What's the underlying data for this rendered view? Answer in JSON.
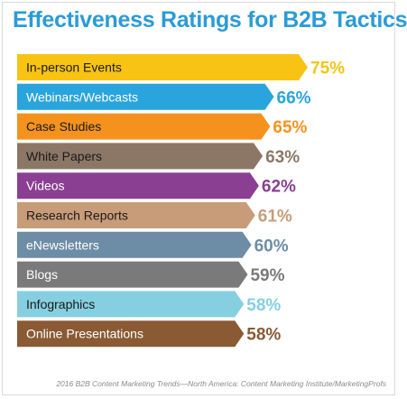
{
  "chart_data": {
    "type": "bar",
    "orientation": "horizontal",
    "title": "Effectiveness Ratings for B2B Tactics",
    "categories": [
      "In-person Events",
      "Webinars/Webcasts",
      "Case Studies",
      "White Papers",
      "Videos",
      "Research Reports",
      "eNewsletters",
      "Blogs",
      "Infographics",
      "Online Presentations"
    ],
    "values": [
      75,
      66,
      65,
      63,
      62,
      61,
      60,
      59,
      58,
      58
    ],
    "value_labels": [
      "75%",
      "66%",
      "65%",
      "63%",
      "62%",
      "61%",
      "60%",
      "59%",
      "58%",
      "58%"
    ],
    "colors": [
      "#f8c313",
      "#2aa4dc",
      "#f5921e",
      "#8c7766",
      "#8b3f92",
      "#c89c78",
      "#6d8ca5",
      "#7a7a7a",
      "#86cfe0",
      "#8a5a34"
    ],
    "label_text_colors": [
      "#1a1a1a",
      "#ffffff",
      "#1a1a1a",
      "#1a1a1a",
      "#ffffff",
      "#1a1a1a",
      "#ffffff",
      "#ffffff",
      "#1a1a1a",
      "#ffffff"
    ],
    "xlabel": "",
    "ylabel": "",
    "grid": false,
    "legend": "none",
    "source": "2016 B2B Content Marketing Trends—North America: Content Marketing Institute/MarketingProfs"
  }
}
